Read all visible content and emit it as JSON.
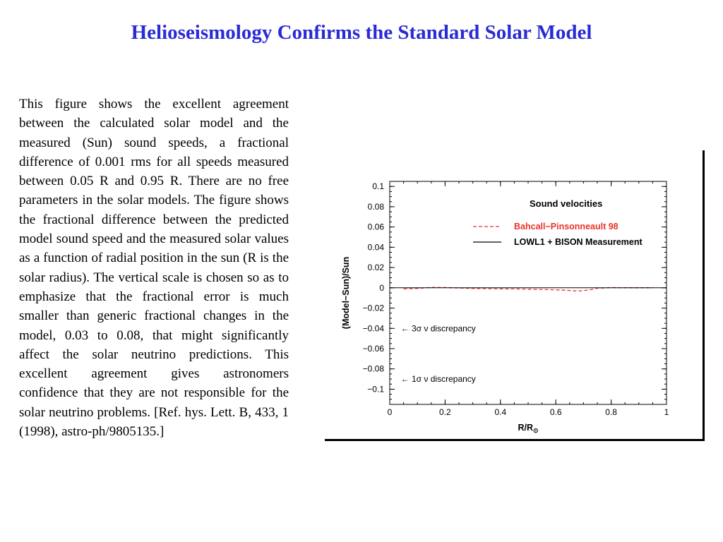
{
  "title": "Helioseismology Confirms the Standard Solar Model",
  "description": "This figure shows the excellent agreement between the calculated solar model  and the measured (Sun) sound speeds, a fractional difference of 0.001 rms for all speeds measured between 0.05 R and 0.95 R. There are no free parameters in the solar models. The figure shows the fractional difference between the predicted model sound speed and the measured solar values as a function of radial position in the sun (R is the solar radius).  The vertical scale is chosen so as to emphasize that the fractional error is much smaller than generic fractional changes in the model, 0.03 to 0.08, that might significantly affect the solar neutrino predictions. This excellent agreement gives astronomers confidence that they are not responsible for the solar neutrino problems. [Ref. hys. Lett. B, 433, 1 (1998), astro-ph/9805135.]",
  "chart_data": {
    "type": "line",
    "legend_title": "Sound velocities",
    "legend_placement": "top-right",
    "xlabel": "R/R",
    "xlabel_subscript": "⊙",
    "ylabel": "(Model−Sun)/Sun",
    "xlim": [
      0,
      1
    ],
    "ylim": [
      -0.115,
      0.105
    ],
    "x_ticks": [
      0,
      0.2,
      0.4,
      0.6,
      0.8,
      1
    ],
    "x_tick_labels": [
      "0",
      "0.2",
      "0.4",
      "0.6",
      "0.8",
      "1"
    ],
    "y_ticks": [
      0.1,
      0.08,
      0.06,
      0.04,
      0.02,
      0,
      -0.02,
      -0.04,
      -0.06,
      -0.08,
      -0.1
    ],
    "y_tick_labels": [
      "0.1",
      "0.08",
      "0.06",
      "0.04",
      "0.02",
      "0",
      "−0.02",
      "−0.04",
      "−0.06",
      "−0.08",
      "−0.1"
    ],
    "series": [
      {
        "name": "Bahcall−Pinsonneault 98",
        "style": "dashed",
        "color": "#e8332a",
        "x": [
          0.05,
          0.1,
          0.15,
          0.2,
          0.25,
          0.3,
          0.35,
          0.4,
          0.45,
          0.5,
          0.55,
          0.6,
          0.65,
          0.68,
          0.72,
          0.75,
          0.8,
          0.85,
          0.9,
          0.95
        ],
        "values": [
          -0.001,
          -0.0006,
          0.0004,
          0.0003,
          -0.0002,
          -0.0006,
          -0.0008,
          -0.001,
          -0.0011,
          -0.0013,
          -0.0016,
          -0.002,
          -0.0026,
          -0.0032,
          -0.0022,
          -0.0004,
          0.0002,
          0.0001,
          0.0001,
          0.0001
        ]
      },
      {
        "name": "LOWL1 + BISON Measurement",
        "style": "solid",
        "color": "#000000",
        "x": [
          0.0,
          1.0
        ],
        "values": [
          0,
          0
        ]
      }
    ],
    "annotations": [
      {
        "arrow": "←",
        "sigma": "3σ",
        "text": "ν  discrepancy",
        "x": 0.04,
        "y": -0.04
      },
      {
        "arrow": "←",
        "sigma": "1σ",
        "text": "ν  discrepancy",
        "x": 0.04,
        "y": -0.09
      }
    ]
  }
}
